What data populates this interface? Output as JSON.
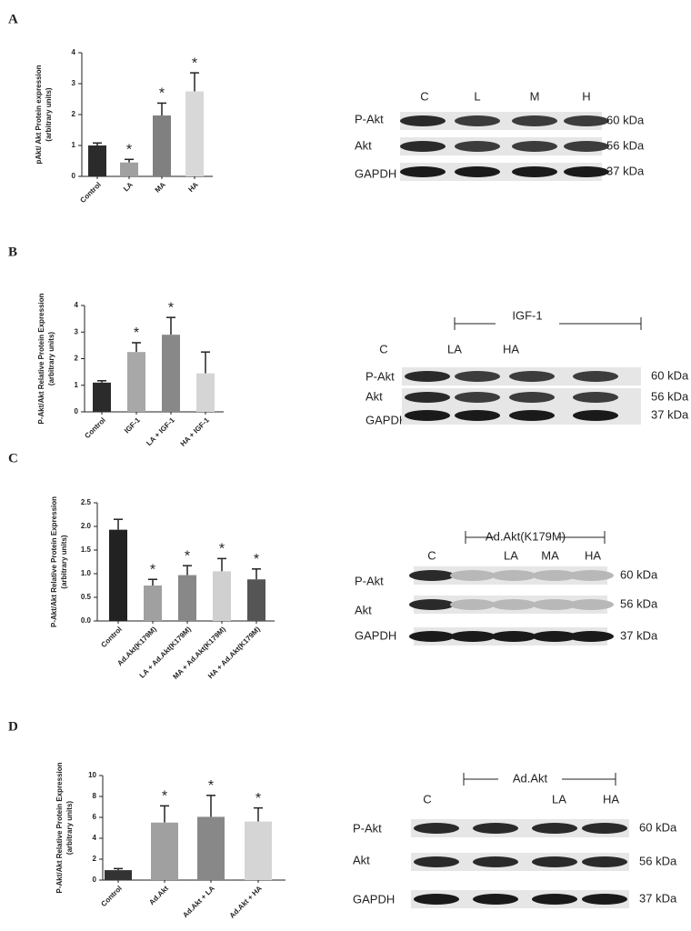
{
  "chart_data": [
    {
      "type": "bar",
      "ylabel": [
        "pAkt/ Akt Protein expression",
        "(arbitrary units)"
      ],
      "categories": [
        "Control",
        "LA",
        "MA",
        "HA"
      ],
      "values": [
        1.0,
        0.45,
        1.97,
        2.75
      ],
      "errors": [
        0.08,
        0.1,
        0.4,
        0.6
      ],
      "colors": [
        "#2b2b2b",
        "#a0a0a0",
        "#808080",
        "#d8d8d8"
      ],
      "significance": [
        null,
        "*",
        "*",
        "*"
      ],
      "ylim": [
        0,
        4
      ],
      "yticks": [
        0,
        1,
        2,
        3,
        4
      ]
    },
    {
      "type": "bar",
      "ylabel": [
        "P-Akt/Akt Relative Protein Expression",
        "(arbitrary units)"
      ],
      "categories": [
        "Control",
        "IGF-1",
        "LA + IGF-1",
        "HA + IGF-1"
      ],
      "values": [
        1.1,
        2.25,
        2.9,
        1.45
      ],
      "errors": [
        0.07,
        0.35,
        0.65,
        0.8
      ],
      "colors": [
        "#2b2b2b",
        "#a8a8a8",
        "#888888",
        "#d5d5d5"
      ],
      "significance": [
        null,
        "*",
        "*",
        null
      ],
      "ylim": [
        0,
        4
      ],
      "yticks": [
        0,
        1,
        2,
        3,
        4
      ]
    },
    {
      "type": "bar",
      "ylabel": [
        "P-Akt/Akt Relative Protein Expression",
        "(arbitrary units)"
      ],
      "categories": [
        "Control",
        "Ad.Akt(K179M)",
        "LA + Ad.Akt(K179M)",
        "MA + Ad.Akt(K179M)",
        "HA + Ad.Akt(K179M)"
      ],
      "values": [
        1.93,
        0.75,
        0.97,
        1.05,
        0.88
      ],
      "errors": [
        0.22,
        0.13,
        0.2,
        0.27,
        0.22
      ],
      "colors": [
        "#222222",
        "#a0a0a0",
        "#888888",
        "#d0d0d0",
        "#555555"
      ],
      "significance": [
        null,
        "*",
        "*",
        "*",
        "*"
      ],
      "ylim": [
        0,
        2.5
      ],
      "yticks": [
        {
          "value": 0,
          "label": "0.0"
        },
        0.5,
        {
          "value": 1,
          "label": "1.0"
        },
        1.5,
        {
          "value": 2,
          "label": "2.0"
        },
        2.5
      ]
    },
    {
      "type": "bar",
      "ylabel": [
        "P-Akt/Akt Relative Protein Expression",
        "(arbitrary units)"
      ],
      "categories": [
        "Control",
        "Ad.Akt",
        "Ad.Akt + LA",
        "Ad.Akt + HA"
      ],
      "values": [
        0.95,
        5.5,
        6.05,
        5.6
      ],
      "errors": [
        0.15,
        1.6,
        2.05,
        1.3
      ],
      "colors": [
        "#333333",
        "#a0a0a0",
        "#888888",
        "#d5d5d5"
      ],
      "significance": [
        null,
        "*",
        "*",
        "*"
      ],
      "ylim": [
        0,
        10
      ],
      "yticks": [
        0,
        2,
        4,
        6,
        8,
        10
      ]
    }
  ],
  "panels": [
    {
      "letter": "A",
      "blot": {
        "lanes": [
          "C",
          "L",
          "M",
          "H"
        ],
        "rows": [
          "P-Akt",
          "Akt",
          "GAPDH"
        ],
        "sizes": [
          "60 kDa",
          "56 kDa",
          "37 kDa"
        ]
      }
    },
    {
      "letter": "B",
      "blot": {
        "bracket": "IGF-1",
        "lanes": [
          "C",
          "LA",
          "HA"
        ],
        "rows": [
          "P-Akt",
          "Akt",
          "GAPDH"
        ],
        "sizes": [
          "60 kDa",
          "56 kDa",
          "37 kDa"
        ]
      }
    },
    {
      "letter": "C",
      "blot": {
        "bracket": "Ad.Akt(K179M)",
        "lanes": [
          "C",
          "LA",
          "MA",
          "HA"
        ],
        "rows": [
          "P-Akt",
          "Akt",
          "GAPDH"
        ],
        "sizes": [
          "60 kDa",
          "56 kDa",
          "37 kDa"
        ]
      }
    },
    {
      "letter": "D",
      "blot": {
        "bracket": "Ad.Akt",
        "lanes": [
          "C",
          "LA",
          "HA"
        ],
        "rows": [
          "P-Akt",
          "Akt",
          "GAPDH"
        ],
        "sizes": [
          "60 kDa",
          "56 kDa",
          "37 kDa"
        ]
      }
    }
  ]
}
